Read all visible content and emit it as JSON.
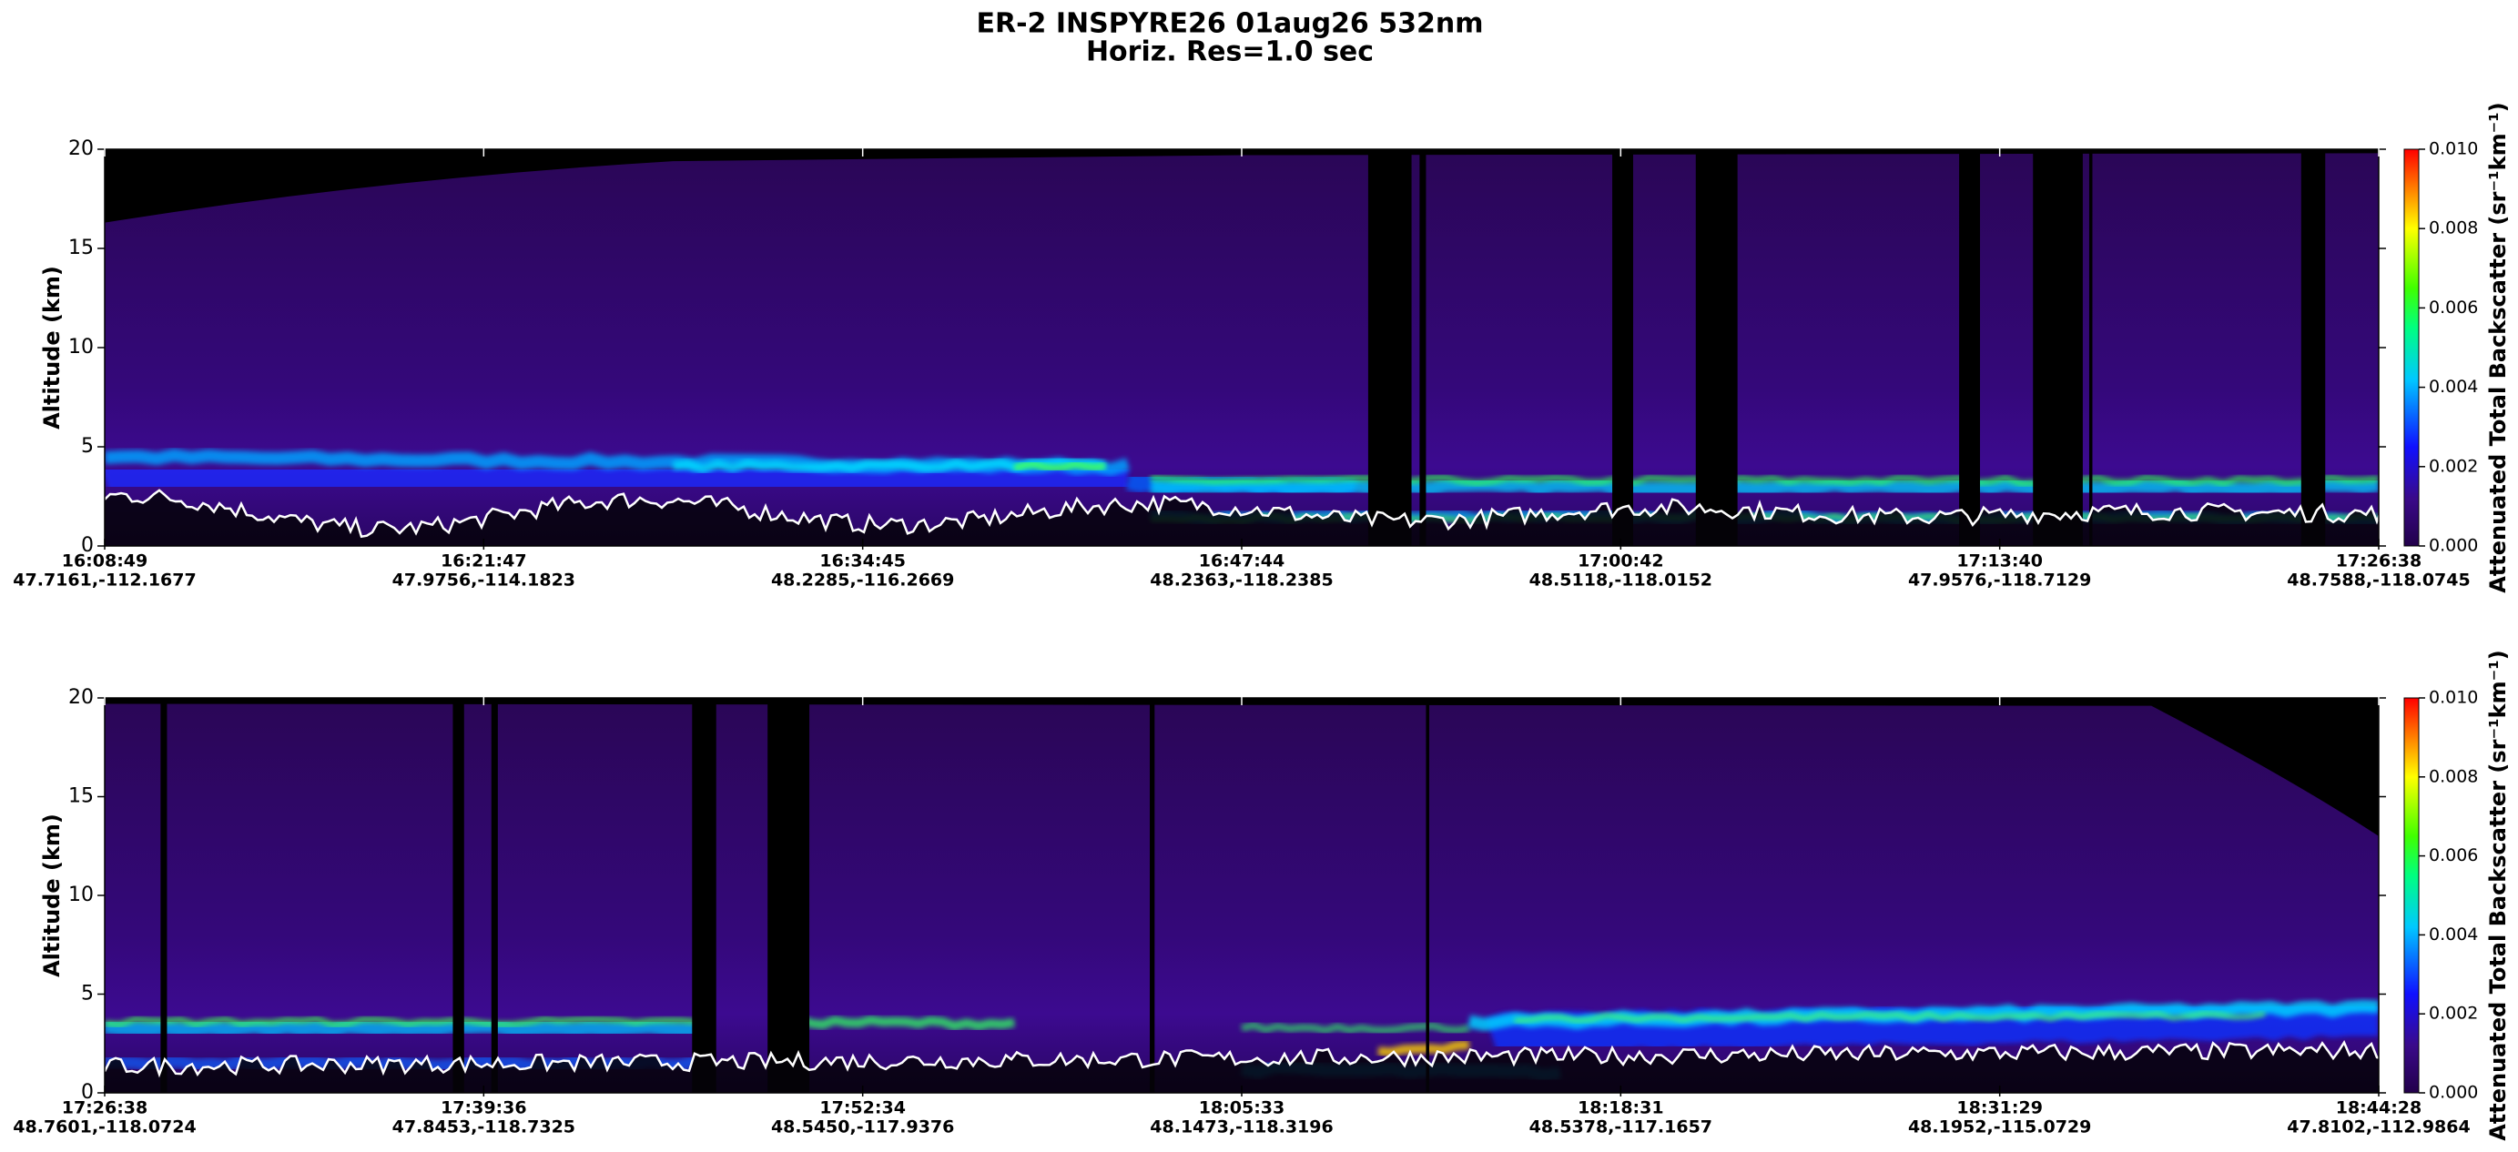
{
  "figure": {
    "title": "ER-2  INSPYRE26  01aug26  532nm",
    "subtitle": "Horiz. Res=1.0 sec"
  },
  "chart_data": [
    {
      "type": "curtain",
      "y_label": "Altitude (km)",
      "ylim": [
        0,
        20
      ],
      "yticks": [
        0,
        5,
        10,
        15,
        20
      ],
      "categories": [
        "16:08:49",
        "16:21:47",
        "16:34:45",
        "16:47:44",
        "17:00:42",
        "17:13:40",
        "17:26:38"
      ],
      "locations": [
        "47.7161,-112.1677",
        "47.9756,-114.1823",
        "48.2285,-116.2669",
        "48.2363,-118.2385",
        "48.5118,-118.0152",
        "47.9576,-118.7129",
        "48.7588,-118.0745"
      ],
      "colorbar": {
        "label": "Attenuated Total Backscatter (sr⁻¹km⁻¹)",
        "lim": [
          0,
          0.01
        ],
        "ticks": [
          {
            "value": 0,
            "label": "0.000"
          },
          {
            "value": 0.002,
            "label": "0.002"
          },
          {
            "value": 0.004,
            "label": "0.004"
          },
          {
            "value": 0.006,
            "label": "0.006"
          },
          {
            "value": 0.008,
            "label": "0.008"
          },
          {
            "value": 0.01,
            "label": "0.010"
          }
        ]
      }
    },
    {
      "type": "curtain",
      "y_label": "Altitude (km)",
      "ylim": [
        0,
        20
      ],
      "yticks": [
        0,
        5,
        10,
        15,
        20
      ],
      "categories": [
        "17:26:38",
        "17:39:36",
        "17:52:34",
        "18:05:33",
        "18:18:31",
        "18:31:29",
        "18:44:28"
      ],
      "locations": [
        "48.7601,-118.0724",
        "47.8453,-118.7325",
        "48.5450,-117.9376",
        "48.1473,-118.3196",
        "48.5378,-117.1657",
        "48.1952,-115.0729",
        "47.8102,-112.9864"
      ],
      "colorbar": {
        "label": "Attenuated Total Backscatter (sr⁻¹km⁻¹)",
        "lim": [
          0,
          0.01
        ],
        "ticks": [
          {
            "value": 0,
            "label": "0.000"
          },
          {
            "value": 0.002,
            "label": "0.002"
          },
          {
            "value": 0.004,
            "label": "0.004"
          },
          {
            "value": 0.006,
            "label": "0.006"
          },
          {
            "value": 0.008,
            "label": "0.008"
          },
          {
            "value": 0.01,
            "label": "0.010"
          }
        ]
      }
    }
  ]
}
